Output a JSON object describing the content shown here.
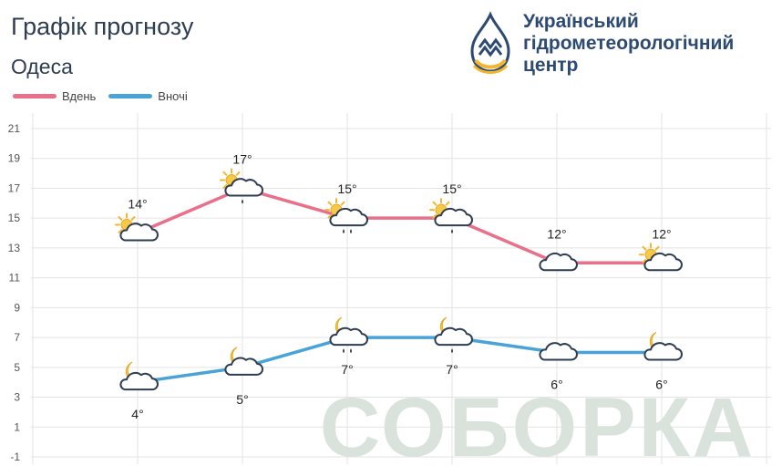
{
  "header": {
    "title": "Графік прогнозу",
    "city": "Одеса"
  },
  "organization": {
    "lines": [
      "Український",
      "гідрометеорологічний",
      "центр"
    ],
    "logo_icon": "hydromet-drop-logo-icon"
  },
  "watermark": "СОБОРКА",
  "colors": {
    "day": "#e8708a",
    "night": "#4aa3d6",
    "grid": "#e3e3e3",
    "text": "#2f3d52",
    "watermark": "#d9e3dc"
  },
  "legend": {
    "day_label": "Вдень",
    "night_label": "Вночі"
  },
  "chart_data": {
    "type": "line",
    "title": "Графік прогнозу",
    "subtitle": "Одеса",
    "x": [
      1,
      2,
      3,
      4,
      5,
      6
    ],
    "ylim": [
      -1,
      21
    ],
    "yticks": [
      21,
      19,
      17,
      15,
      13,
      11,
      9,
      7,
      5,
      3,
      1,
      -1
    ],
    "grid": true,
    "legend_position": "top-left",
    "series": [
      {
        "name": "Вдень",
        "color": "#e8708a",
        "values": [
          14,
          17,
          15,
          15,
          12,
          12
        ],
        "labels": [
          "14°",
          "17°",
          "15°",
          "15°",
          "12°",
          "12°"
        ],
        "icons": [
          "sun-cloud-icon",
          "sun-cloud-drizzle-icon",
          "sun-cloud-rain-icon",
          "sun-cloud-drizzle-icon",
          "cloud-icon",
          "sun-cloud-icon"
        ]
      },
      {
        "name": "Вночі",
        "color": "#4aa3d6",
        "values": [
          4,
          5,
          7,
          7,
          6,
          6
        ],
        "labels": [
          "4°",
          "5°",
          "7°",
          "7°",
          "6°",
          "6°"
        ],
        "icons": [
          "moon-cloud-icon",
          "moon-cloud-icon",
          "moon-cloud-rain-icon",
          "moon-cloud-drizzle-icon",
          "cloud-icon",
          "moon-cloud-icon"
        ]
      }
    ]
  }
}
